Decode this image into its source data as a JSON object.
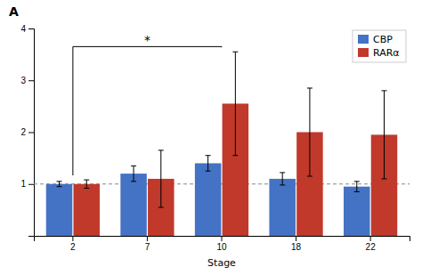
{
  "chart_data": {
    "type": "bar",
    "title": "A",
    "x_label": "Stage",
    "categories": [
      2,
      7,
      10,
      18,
      22
    ],
    "series": [
      {
        "name": "CBP",
        "color": "#4472c4",
        "values": [
          1.0,
          1.2,
          1.4,
          1.1,
          0.95
        ],
        "errors": [
          0.05,
          0.15,
          0.15,
          0.12,
          0.1
        ]
      },
      {
        "name": "RARα",
        "color": "#c0392b",
        "values": [
          1.0,
          1.1,
          2.55,
          2.0,
          1.95
        ],
        "errors": [
          0.08,
          0.55,
          1.0,
          0.85,
          0.85
        ]
      }
    ],
    "ylim": [
      0,
      4
    ],
    "yticks": [
      1,
      2,
      3,
      4
    ],
    "grid": false,
    "legend": "upper right",
    "annotations": [
      {
        "type": "hline",
        "y": 1.0
      },
      {
        "type": "bracket",
        "from": 2,
        "to": 10,
        "y": 3.65,
        "text": "*"
      }
    ]
  }
}
